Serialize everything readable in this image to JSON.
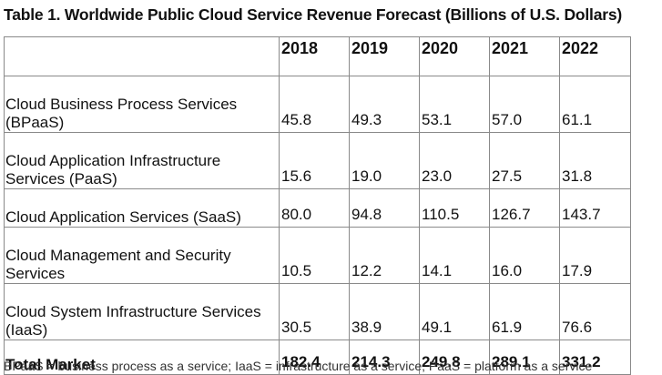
{
  "title": "Table 1. Worldwide Public Cloud Service Revenue Forecast (Billions of U.S. Dollars)",
  "table": {
    "header": [
      "",
      "2018",
      "2019",
      "2020",
      "2021",
      "2022"
    ],
    "rows": [
      {
        "label": "Cloud Business Process Services (BPaaS)",
        "values": [
          "45.8",
          "49.3",
          "53.1",
          "57.0",
          "61.1"
        ]
      },
      {
        "label": "Cloud Application Infrastructure Services (PaaS)",
        "values": [
          "15.6",
          "19.0",
          "23.0",
          "27.5",
          "31.8"
        ]
      },
      {
        "label": "Cloud Application Services (SaaS)",
        "values": [
          "80.0",
          "94.8",
          "110.5",
          "126.7",
          "143.7"
        ]
      },
      {
        "label": "Cloud Management and Security Services",
        "values": [
          "10.5",
          "12.2",
          "14.1",
          "16.0",
          "17.9"
        ]
      },
      {
        "label": "Cloud System Infrastructure Services (IaaS)",
        "values": [
          "30.5",
          "38.9",
          "49.1",
          "61.9",
          "76.6"
        ]
      }
    ],
    "total": {
      "label": "Total Market",
      "values": [
        "182.4",
        "214.3",
        "249.8",
        "289.1",
        "331.2"
      ]
    }
  },
  "footer": "BPaaS = business process as a service; IaaS = infrastructure as a service; PaaS = platform as a service"
}
